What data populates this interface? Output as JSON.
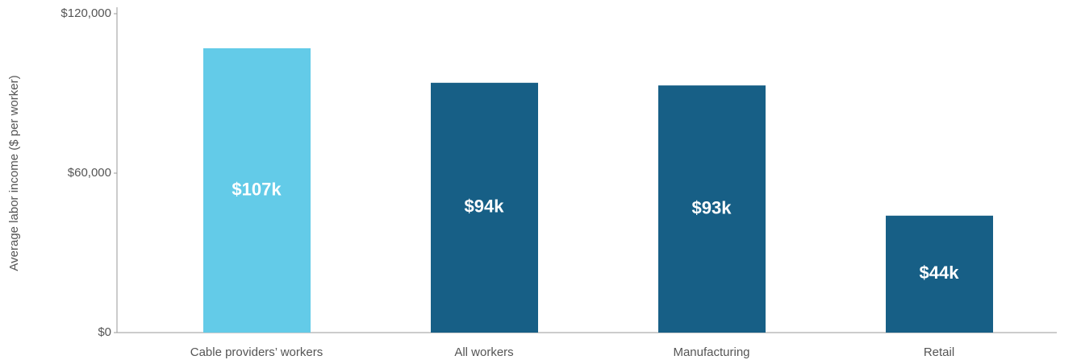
{
  "chart_data": {
    "type": "bar",
    "ylabel": "Average labor income ($ per worker)",
    "categories": [
      "Cable providers’ workers",
      "All workers",
      "Manufacturing",
      "Retail"
    ],
    "values": [
      107000,
      94000,
      93000,
      44000
    ],
    "value_labels": [
      "$107k",
      "$94k",
      "$93k",
      "$44k"
    ],
    "colors": [
      "#63cbe8",
      "#175f86",
      "#175f86",
      "#175f86"
    ],
    "ylim": [
      0,
      120000
    ],
    "yticks": [
      {
        "value": 0,
        "label": "$0"
      },
      {
        "value": 60000,
        "label": "$60,000"
      },
      {
        "value": 120000,
        "label": "$120,000"
      }
    ]
  }
}
